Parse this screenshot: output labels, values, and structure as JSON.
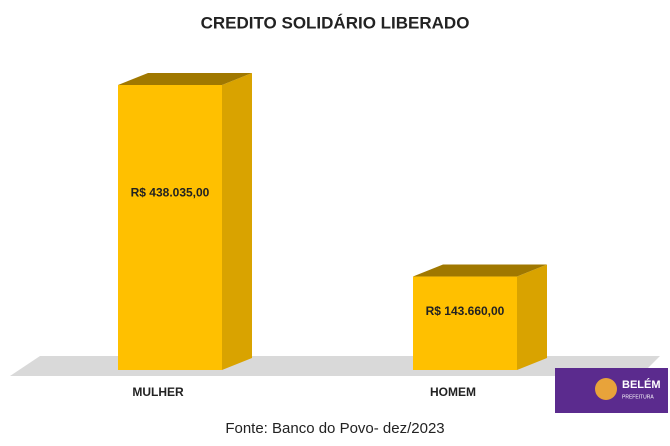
{
  "chart_data": {
    "type": "bar3d",
    "title": "CREDITO SOLIDÁRIO LIBERADO",
    "categories": [
      "MULHER",
      "HOMEM"
    ],
    "values": [
      438035.0,
      143660.0
    ],
    "value_labels": [
      "R$ 438.035,00",
      "R$ 143.660,00"
    ],
    "color": "#ffc000",
    "source": "Fonte: Banco do Povo- dez/2023",
    "logo": {
      "name": "BELÉM",
      "subtitle": "PREFEITURA"
    }
  }
}
